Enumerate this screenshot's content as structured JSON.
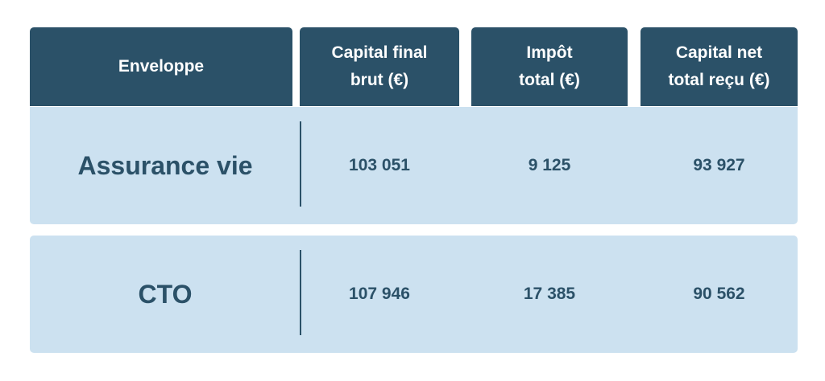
{
  "table": {
    "headers": [
      "Enveloppe",
      "Capital final\nbrut (€)",
      "Impôt\ntotal (€)",
      "Capital net\ntotal reçu (€)"
    ],
    "rows": [
      {
        "label": "Assurance vie",
        "capital_brut": "103 051",
        "impot": "9 125",
        "capital_net": "93 927"
      },
      {
        "label": "CTO",
        "capital_brut": "107 946",
        "impot": "17 385",
        "capital_net": "90 562"
      }
    ]
  },
  "colors": {
    "header_bg": "#2b5168",
    "row_bg": "#cce1f0",
    "text": "#2b5168"
  }
}
